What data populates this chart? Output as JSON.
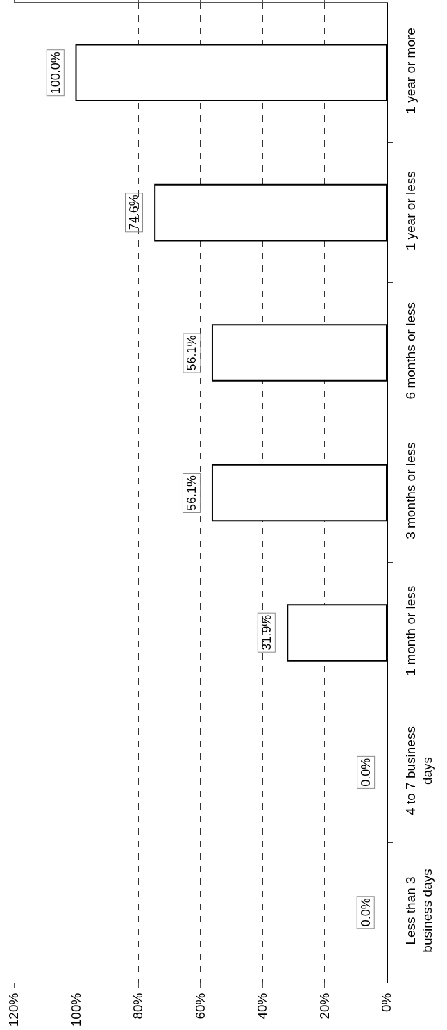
{
  "chart_data": {
    "type": "bar",
    "orientation": "horizontal",
    "categories": [
      "1 year or more",
      "1 year or less",
      "6 months or less",
      "3 months or less",
      "1 month or less",
      "4 to 7 business days",
      "Less than 3 business days"
    ],
    "values": [
      100,
      74.6,
      56.1,
      56.1,
      31.9,
      0,
      0
    ],
    "value_labels": [
      "100.0%",
      "74.6%",
      "56.1%",
      "56.1%",
      "31.9%",
      "0.0%",
      "0.0%"
    ],
    "color": "#ffffff",
    "xlim": [
      120,
      0
    ],
    "xticks": [
      {
        "value": 0,
        "label": "0%"
      },
      {
        "value": 20,
        "label": "20%"
      },
      {
        "value": 40,
        "label": "40%"
      },
      {
        "value": 60,
        "label": "60%"
      },
      {
        "value": 80,
        "label": "80%"
      },
      {
        "value": 100,
        "label": "100%"
      },
      {
        "value": 120,
        "label": "120%"
      }
    ],
    "grid": "x"
  }
}
